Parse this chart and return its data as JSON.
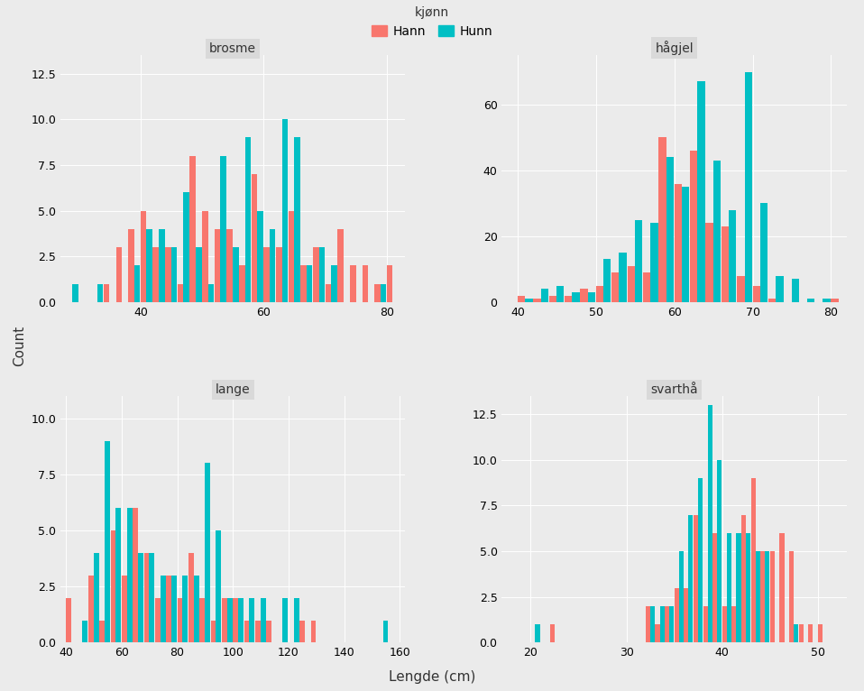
{
  "panels": [
    {
      "title": "brosme",
      "xlim": [
        27,
        83
      ],
      "ylim": [
        0,
        13.5
      ],
      "yticks": [
        0.0,
        2.5,
        5.0,
        7.5,
        10.0,
        12.5
      ],
      "xticks": [
        40,
        60,
        80
      ],
      "bin_width": 2,
      "hann": {
        "bins": [
          28,
          30,
          32,
          34,
          36,
          38,
          40,
          42,
          44,
          46,
          48,
          50,
          52,
          54,
          56,
          58,
          60,
          62,
          64,
          66,
          68,
          70,
          72,
          74,
          76,
          78,
          80
        ],
        "counts": [
          0,
          0,
          0,
          1,
          3,
          4,
          5,
          3,
          3,
          1,
          8,
          5,
          4,
          4,
          2,
          7,
          3,
          3,
          5,
          2,
          3,
          1,
          4,
          2,
          2,
          1,
          2
        ]
      },
      "hunn": {
        "bins": [
          28,
          30,
          32,
          34,
          36,
          38,
          40,
          42,
          44,
          46,
          48,
          50,
          52,
          54,
          56,
          58,
          60,
          62,
          64,
          66,
          68,
          70,
          72,
          74,
          76,
          78,
          80
        ],
        "counts": [
          1,
          0,
          1,
          0,
          0,
          2,
          4,
          4,
          3,
          6,
          3,
          1,
          8,
          3,
          9,
          5,
          4,
          10,
          9,
          2,
          3,
          2,
          0,
          0,
          0,
          1,
          0
        ]
      }
    },
    {
      "title": "hågjel",
      "xlim": [
        38,
        82
      ],
      "ylim": [
        0,
        75
      ],
      "yticks": [
        0,
        20,
        40,
        60
      ],
      "xticks": [
        40,
        50,
        60,
        70,
        80
      ],
      "bin_width": 2,
      "hann": {
        "bins": [
          40,
          42,
          44,
          46,
          48,
          50,
          52,
          54,
          56,
          58,
          60,
          62,
          64,
          66,
          68,
          70,
          72,
          74,
          76,
          78,
          80
        ],
        "counts": [
          2,
          1,
          2,
          2,
          4,
          5,
          9,
          11,
          9,
          50,
          36,
          46,
          24,
          23,
          8,
          5,
          1,
          0,
          0,
          0,
          1
        ]
      },
      "hunn": {
        "bins": [
          40,
          42,
          44,
          46,
          48,
          50,
          52,
          54,
          56,
          58,
          60,
          62,
          64,
          66,
          68,
          70,
          72,
          74,
          76,
          78,
          80
        ],
        "counts": [
          1,
          4,
          5,
          3,
          3,
          13,
          15,
          25,
          24,
          44,
          35,
          67,
          43,
          28,
          70,
          30,
          8,
          7,
          1,
          1,
          0
        ]
      }
    },
    {
      "title": "lange",
      "xlim": [
        38,
        162
      ],
      "ylim": [
        0,
        11
      ],
      "yticks": [
        0.0,
        2.5,
        5.0,
        7.5,
        10.0
      ],
      "xticks": [
        40,
        60,
        80,
        100,
        120,
        140,
        160
      ],
      "bin_width": 4,
      "hann": {
        "bins": [
          40,
          44,
          48,
          52,
          56,
          60,
          64,
          68,
          72,
          76,
          80,
          84,
          88,
          92,
          96,
          100,
          104,
          108,
          112,
          116,
          120,
          124,
          128,
          132,
          152
        ],
        "counts": [
          2,
          0,
          3,
          1,
          5,
          3,
          6,
          4,
          2,
          3,
          2,
          4,
          2,
          1,
          2,
          2,
          1,
          1,
          1,
          0,
          0,
          1,
          1,
          0,
          0
        ]
      },
      "hunn": {
        "bins": [
          40,
          44,
          48,
          52,
          56,
          60,
          64,
          68,
          72,
          76,
          80,
          84,
          88,
          92,
          96,
          100,
          104,
          108,
          112,
          116,
          120,
          124,
          128,
          132,
          152
        ],
        "counts": [
          0,
          1,
          4,
          9,
          6,
          6,
          4,
          4,
          3,
          3,
          3,
          3,
          8,
          5,
          2,
          2,
          2,
          2,
          0,
          2,
          2,
          0,
          0,
          0,
          1
        ]
      }
    },
    {
      "title": "svarthå",
      "xlim": [
        17,
        53
      ],
      "ylim": [
        0,
        13.5
      ],
      "yticks": [
        0.0,
        2.5,
        5.0,
        7.5,
        10.0,
        12.5
      ],
      "xticks": [
        20,
        30,
        40,
        50
      ],
      "bin_width": 1,
      "hann": {
        "bins": [
          20,
          22,
          30,
          32,
          33,
          34,
          35,
          36,
          37,
          38,
          39,
          40,
          41,
          42,
          43,
          44,
          45,
          46,
          47,
          48,
          49,
          50
        ],
        "counts": [
          0,
          1,
          0,
          2,
          1,
          2,
          3,
          3,
          7,
          2,
          6,
          2,
          2,
          7,
          9,
          5,
          5,
          6,
          5,
          1,
          1,
          1
        ]
      },
      "hunn": {
        "bins": [
          20,
          22,
          30,
          32,
          33,
          34,
          35,
          36,
          37,
          38,
          39,
          40,
          41,
          42,
          43,
          44,
          45,
          46,
          47,
          48,
          49,
          50
        ],
        "counts": [
          1,
          0,
          0,
          2,
          2,
          2,
          5,
          7,
          9,
          13,
          10,
          6,
          6,
          6,
          5,
          5,
          0,
          0,
          1,
          0,
          0,
          0
        ]
      }
    }
  ],
  "hann_color": "#F8766D",
  "hunn_color": "#00BFC4",
  "bg_color": "#EBEBEB",
  "panel_bg": "#EBEBEB",
  "strip_bg": "#D9D9D9",
  "grid_color": "#FFFFFF",
  "ylabel": "Count",
  "xlabel": "Lengde (cm)",
  "legend_title": "kjønn",
  "legend_hann": "Hann",
  "legend_hunn": "Hunn",
  "title_fontsize": 10,
  "axis_fontsize": 9,
  "legend_fontsize": 10
}
